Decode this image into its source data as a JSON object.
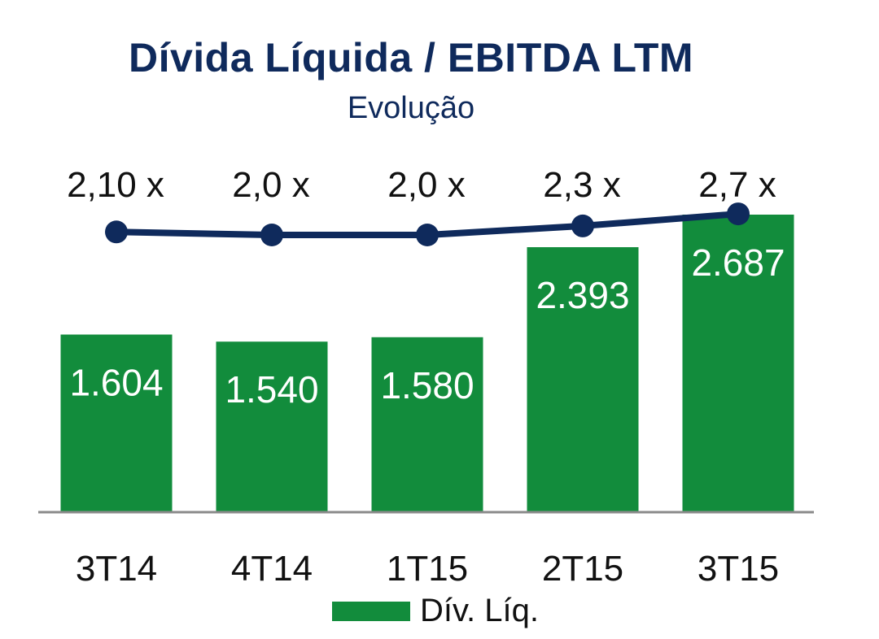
{
  "chart_data": {
    "type": "bar",
    "title": "Dívida Líquida / EBITDA LTM",
    "subtitle": "Evolução",
    "categories": [
      "3T14",
      "4T14",
      "1T15",
      "2T15",
      "3T15"
    ],
    "series": [
      {
        "name": "Dív. Líq.",
        "type": "bar",
        "values": [
          1604,
          1540,
          1580,
          2393,
          2687
        ],
        "labels": [
          "1.604",
          "1.540",
          "1.580",
          "2.393",
          "2.687"
        ],
        "color": "#128c3c"
      },
      {
        "type": "line",
        "values": [
          2.1,
          2.0,
          2.0,
          2.3,
          2.7
        ],
        "labels": [
          "2,10 x",
          "2,0 x",
          "2,0 x",
          "2,3 x",
          "2,7 x"
        ],
        "color": "#0f2a5c"
      }
    ],
    "legend": "bottom",
    "grid": false
  }
}
